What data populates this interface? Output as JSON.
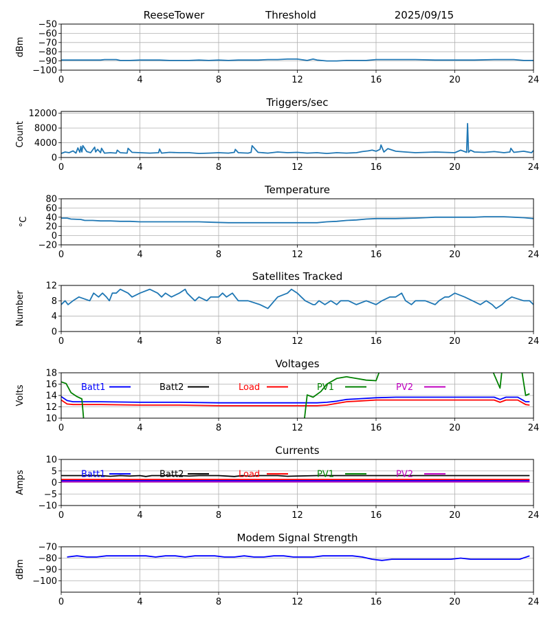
{
  "header": {
    "station": "ReeseTower",
    "mode": "Threshold",
    "date": "2025/09/15"
  },
  "chart_data": [
    {
      "id": "threshold",
      "type": "line",
      "title": "",
      "xlabel": "",
      "ylabel": "dBm",
      "xlim": [
        0,
        24
      ],
      "ylim": [
        -100,
        -50
      ],
      "xticks": [
        "0",
        "4",
        "8",
        "12",
        "16",
        "20",
        "24"
      ],
      "yticks": [
        "−50",
        "−60",
        "−70",
        "−80",
        "−90",
        "−100"
      ],
      "ytick_values": [
        -50,
        -60,
        -70,
        -80,
        -90,
        -100
      ],
      "grid": true,
      "series": [
        {
          "name": "Threshold",
          "color": "#1f77b4",
          "x": [
            0,
            0.3,
            1,
            2,
            2.2,
            2.8,
            3,
            3.5,
            4,
            5,
            5.5,
            6.5,
            7,
            7.5,
            8,
            8.5,
            9,
            9.5,
            10,
            10.5,
            11,
            11.5,
            12,
            12.5,
            12.8,
            13,
            13.5,
            14,
            14.5,
            15,
            15.5,
            16,
            16.5,
            17,
            18,
            19,
            20,
            21,
            22,
            23,
            23.5,
            24
          ],
          "y": [
            -89,
            -89,
            -89,
            -89,
            -88.5,
            -88.5,
            -89.5,
            -89.5,
            -89,
            -89,
            -89.5,
            -89.5,
            -89,
            -89.5,
            -89,
            -89.5,
            -89,
            -89,
            -89,
            -88.5,
            -88.5,
            -88,
            -88,
            -89.5,
            -88,
            -89,
            -90,
            -90,
            -89.5,
            -89.5,
            -89.5,
            -88.5,
            -88.5,
            -88.5,
            -88.5,
            -89,
            -89,
            -89,
            -88.5,
            -88.5,
            -89.5,
            -89.5
          ]
        }
      ]
    },
    {
      "id": "triggers",
      "type": "line",
      "title": "Triggers/sec",
      "xlabel": "",
      "ylabel": "Count",
      "xlim": [
        0,
        24
      ],
      "ylim": [
        0,
        12500
      ],
      "xticks": [
        "0",
        "4",
        "8",
        "12",
        "16",
        "20",
        "24"
      ],
      "yticks": [
        "12000",
        "8000",
        "4000",
        "0"
      ],
      "ytick_values": [
        12000,
        8000,
        4000,
        0
      ],
      "grid": true,
      "series": [
        {
          "name": "Triggers",
          "color": "#1f77b4",
          "x": [
            0,
            0.2,
            0.4,
            0.6,
            0.75,
            0.85,
            0.95,
            1.0,
            1.05,
            1.1,
            1.3,
            1.5,
            1.7,
            1.75,
            1.85,
            2.0,
            2.05,
            2.2,
            2.5,
            2.8,
            2.85,
            3.0,
            3.35,
            3.4,
            3.6,
            4.0,
            4.5,
            4.95,
            5.0,
            5.1,
            5.5,
            6.0,
            6.5,
            7.0,
            7.5,
            8.0,
            8.5,
            8.8,
            8.85,
            9.0,
            9.5,
            9.65,
            9.7,
            10.0,
            10.5,
            11.0,
            11.5,
            12.0,
            12.5,
            13.0,
            13.5,
            14.0,
            14.5,
            15.0,
            15.3,
            15.6,
            15.8,
            16.0,
            16.2,
            16.25,
            16.4,
            16.6,
            17.0,
            17.5,
            18.0,
            18.5,
            19.0,
            19.5,
            20.0,
            20.3,
            20.6,
            20.65,
            20.7,
            20.8,
            21.0,
            21.5,
            22.0,
            22.5,
            22.8,
            22.85,
            23.0,
            23.5,
            23.9,
            24.0
          ],
          "y": [
            1100,
            1500,
            1300,
            1800,
            1200,
            2600,
            1400,
            3000,
            1500,
            3200,
            1600,
            1300,
            2800,
            1500,
            2200,
            1300,
            2500,
            1200,
            1300,
            1200,
            2000,
            1300,
            1200,
            2500,
            1400,
            1300,
            1200,
            1300,
            2300,
            1200,
            1400,
            1300,
            1300,
            1100,
            1200,
            1300,
            1200,
            1400,
            2200,
            1300,
            1200,
            1400,
            3200,
            1400,
            1200,
            1500,
            1300,
            1400,
            1200,
            1300,
            1100,
            1300,
            1200,
            1300,
            1600,
            1800,
            2000,
            1700,
            2200,
            3400,
            1500,
            2400,
            1700,
            1500,
            1300,
            1400,
            1500,
            1400,
            1300,
            2000,
            1400,
            9200,
            1400,
            2000,
            1500,
            1400,
            1600,
            1300,
            1500,
            2500,
            1400,
            1700,
            1300,
            1900
          ]
        }
      ]
    },
    {
      "id": "temperature",
      "type": "line",
      "title": "Temperature",
      "xlabel": "",
      "ylabel": "°C",
      "xlim": [
        0,
        24
      ],
      "ylim": [
        -20,
        80
      ],
      "xticks": [
        "0",
        "4",
        "8",
        "12",
        "16",
        "20",
        "24"
      ],
      "yticks": [
        "80",
        "60",
        "40",
        "20",
        "0",
        "−20"
      ],
      "ytick_values": [
        80,
        60,
        40,
        20,
        0,
        -20
      ],
      "grid": true,
      "series": [
        {
          "name": "Temperature",
          "color": "#1f77b4",
          "x": [
            0,
            0.3,
            0.5,
            1.0,
            1.2,
            1.6,
            2.0,
            2.5,
            3.0,
            3.5,
            4.0,
            5.0,
            6.0,
            7.0,
            7.7,
            8.5,
            9.0,
            10.0,
            11.0,
            12.0,
            12.5,
            13.0,
            13.5,
            14.0,
            14.5,
            15.0,
            15.5,
            16.0,
            17.0,
            18.0,
            18.5,
            19.0,
            20.0,
            21.0,
            21.5,
            22.0,
            22.5,
            23.0,
            23.5,
            24.0
          ],
          "y": [
            38,
            38,
            36,
            35,
            33,
            33,
            32,
            32,
            31,
            31,
            30,
            30,
            30,
            30,
            29,
            28,
            28,
            28,
            28,
            28,
            28,
            28,
            30,
            31,
            33,
            34,
            36,
            37,
            37,
            38,
            39,
            40,
            40,
            40,
            41,
            41,
            41,
            40,
            39,
            37
          ]
        }
      ]
    },
    {
      "id": "satellites",
      "type": "line",
      "title": "Satellites Tracked",
      "xlabel": "",
      "ylabel": "Number",
      "xlim": [
        0,
        24
      ],
      "ylim": [
        0,
        12
      ],
      "xticks": [
        "0",
        "4",
        "8",
        "12",
        "16",
        "20",
        "24"
      ],
      "yticks": [
        "12",
        "8",
        "4",
        "0"
      ],
      "ytick_values": [
        12,
        8,
        4,
        0
      ],
      "grid": true,
      "series": [
        {
          "name": "Satellites",
          "color": "#1f77b4",
          "x": [
            0,
            0.2,
            0.35,
            0.6,
            0.9,
            1.45,
            1.65,
            1.9,
            2.1,
            2.3,
            2.45,
            2.6,
            2.8,
            3.0,
            3.4,
            3.6,
            4.0,
            4.5,
            4.9,
            5.1,
            5.3,
            5.6,
            6.0,
            6.3,
            6.4,
            6.6,
            6.8,
            7.0,
            7.4,
            7.6,
            8.0,
            8.2,
            8.4,
            8.7,
            8.85,
            9.0,
            9.5,
            10.1,
            10.5,
            11.0,
            11.5,
            11.7,
            12.0,
            12.2,
            12.4,
            12.8,
            12.9,
            13.1,
            13.4,
            13.7,
            14.0,
            14.2,
            14.6,
            15.0,
            15.5,
            16.0,
            16.3,
            16.7,
            17.0,
            17.3,
            17.5,
            17.8,
            18.0,
            18.5,
            19.0,
            19.2,
            19.5,
            19.7,
            20.0,
            20.5,
            20.9,
            21.3,
            21.6,
            21.9,
            22.1,
            22.4,
            22.6,
            22.9,
            23.5,
            23.8,
            24.0
          ],
          "y": [
            7,
            8,
            7,
            8,
            9,
            8,
            10,
            9,
            10,
            9,
            8,
            10,
            10,
            11,
            10,
            9,
            10,
            11,
            10,
            9,
            10,
            9,
            10,
            11,
            10,
            9,
            8,
            9,
            8,
            9,
            9,
            10,
            9,
            10,
            9,
            8,
            8,
            7,
            6,
            9,
            10,
            11,
            10,
            9,
            8,
            7,
            7,
            8,
            7,
            8,
            7,
            8,
            8,
            7,
            8,
            7,
            8,
            9,
            9,
            10,
            8,
            7,
            8,
            8,
            7,
            8,
            9,
            9,
            10,
            9,
            8,
            7,
            8,
            7,
            6,
            7,
            8,
            9,
            8,
            8,
            7
          ]
        }
      ]
    },
    {
      "id": "voltages",
      "type": "line",
      "title": "Voltages",
      "xlabel": "",
      "ylabel": "Volts",
      "xlim": [
        0,
        24
      ],
      "ylim": [
        10,
        18
      ],
      "xticks": [
        "0",
        "4",
        "8",
        "12",
        "16",
        "20",
        "24"
      ],
      "yticks": [
        "18",
        "16",
        "14",
        "12",
        "10"
      ],
      "ytick_values": [
        18,
        16,
        14,
        12,
        10
      ],
      "grid": true,
      "legend": "top",
      "series": [
        {
          "name": "Batt1",
          "color": "#0000ff",
          "x": [
            0,
            0.3,
            0.6,
            1,
            2,
            4,
            6,
            8,
            10,
            12,
            13,
            13.5,
            14,
            14.5,
            15,
            16,
            17,
            18,
            20,
            22,
            22.3,
            22.6,
            23.2,
            23.6,
            23.8
          ],
          "y": [
            13.8,
            13.1,
            12.9,
            12.9,
            12.9,
            12.8,
            12.8,
            12.7,
            12.7,
            12.7,
            12.7,
            12.8,
            13.0,
            13.3,
            13.4,
            13.6,
            13.7,
            13.7,
            13.7,
            13.7,
            13.3,
            13.7,
            13.7,
            12.9,
            12.9
          ]
        },
        {
          "name": "Batt2",
          "color": "#000000",
          "x": [],
          "y": []
        },
        {
          "name": "Load",
          "color": "#ff0000",
          "x": [
            0,
            0.3,
            0.6,
            1,
            2,
            4,
            6,
            8,
            10,
            12,
            13,
            13.5,
            14,
            14.5,
            15,
            16,
            17,
            18,
            20,
            22,
            22.3,
            22.6,
            23.2,
            23.6,
            23.8
          ],
          "y": [
            13.2,
            12.5,
            12.4,
            12.4,
            12.4,
            12.3,
            12.3,
            12.2,
            12.2,
            12.2,
            12.2,
            12.3,
            12.6,
            12.9,
            13.0,
            13.2,
            13.2,
            13.2,
            13.2,
            13.2,
            12.8,
            13.2,
            13.2,
            12.4,
            12.3
          ]
        },
        {
          "name": "PV1",
          "color": "#008000",
          "x": [
            0,
            0.25,
            0.5,
            0.8,
            1.05,
            1.15,
            12.35,
            12.5,
            12.8,
            13.2,
            13.5,
            14,
            14.5,
            15,
            15.5,
            16,
            16.2,
            21.9,
            22.3,
            22.4,
            23.4,
            23.6,
            23.8
          ],
          "y": [
            16.4,
            16.1,
            14.5,
            13.8,
            13.4,
            9.5,
            9.5,
            14.1,
            13.7,
            14.7,
            16.0,
            17.0,
            17.3,
            17.0,
            16.7,
            16.6,
            18.5,
            18.5,
            15.3,
            18.5,
            18.5,
            14.0,
            14.3
          ]
        },
        {
          "name": "PV2",
          "color": "#bf00bf",
          "x": [],
          "y": []
        }
      ]
    },
    {
      "id": "currents",
      "type": "line",
      "title": "Currents",
      "xlabel": "",
      "ylabel": "Amps",
      "xlim": [
        0,
        24
      ],
      "ylim": [
        -10,
        10
      ],
      "xticks": [
        "0",
        "4",
        "8",
        "12",
        "16",
        "20",
        "24"
      ],
      "yticks": [
        "10",
        "5",
        "0",
        "−5",
        "−10"
      ],
      "ytick_values": [
        10,
        5,
        0,
        -5,
        -10
      ],
      "grid": true,
      "legend": "top",
      "series": [
        {
          "name": "Batt1",
          "color": "#0000ff",
          "x": [
            0,
            23.8
          ],
          "y": [
            0.8,
            0.8
          ]
        },
        {
          "name": "Batt2",
          "color": "#000000",
          "x": [
            0,
            2,
            2.5,
            3,
            3.5,
            4,
            4.3,
            4.6,
            5,
            6,
            6.5,
            7,
            8,
            8.8,
            9.2,
            9.6,
            10,
            11,
            11.5,
            12,
            13,
            16,
            20,
            23.8
          ],
          "y": [
            3,
            3,
            2.7,
            3,
            2.8,
            3,
            2.6,
            3,
            3,
            3,
            2.8,
            3,
            3,
            2.6,
            3,
            2.7,
            3,
            3,
            2.7,
            2.8,
            3,
            3,
            3,
            3
          ]
        },
        {
          "name": "Load",
          "color": "#ff0000",
          "x": [
            0,
            23.8
          ],
          "y": [
            1.3,
            1.3
          ]
        },
        {
          "name": "PV1",
          "color": "#008000",
          "x": [],
          "y": []
        },
        {
          "name": "PV2",
          "color": "#bf00bf",
          "x": [
            0,
            23.8
          ],
          "y": [
            0.3,
            0.3
          ]
        }
      ]
    },
    {
      "id": "modem",
      "type": "line",
      "title": "Modem Signal Strength",
      "xlabel": "",
      "ylabel": "dBm",
      "xlim": [
        0,
        24
      ],
      "ylim": [
        -110,
        -70
      ],
      "xticks": [
        "0",
        "4",
        "8",
        "12",
        "16",
        "20",
        "24"
      ],
      "yticks": [
        "−70",
        "−80",
        "−90",
        "−100"
      ],
      "ytick_values": [
        -70,
        -80,
        -90,
        -100
      ],
      "grid": true,
      "series": [
        {
          "name": "Modem",
          "color": "#0000ff",
          "x": [
            0.3,
            0.8,
            1.3,
            1.8,
            2.3,
            2.8,
            3.3,
            3.8,
            4.3,
            4.8,
            5.3,
            5.8,
            6.3,
            6.8,
            7.3,
            7.8,
            8.3,
            8.8,
            9.3,
            9.8,
            10.3,
            10.8,
            11.3,
            11.8,
            12.3,
            12.8,
            13.3,
            13.8,
            14.3,
            14.8,
            15.3,
            15.8,
            16.3,
            16.8,
            17.3,
            17.8,
            18.3,
            18.8,
            19.3,
            19.8,
            20.3,
            20.8,
            21.3,
            21.8,
            22.3,
            22.8,
            23.3,
            23.8
          ],
          "y": [
            -79,
            -78,
            -79,
            -79,
            -78,
            -78,
            -78,
            -78,
            -78,
            -79,
            -78,
            -78,
            -79,
            -78,
            -78,
            -78,
            -79,
            -79,
            -78,
            -79,
            -79,
            -78,
            -78,
            -79,
            -79,
            -79,
            -78,
            -78,
            -78,
            -78,
            -79,
            -81,
            -82,
            -81,
            -81,
            -81,
            -81,
            -81,
            -81,
            -81,
            -80,
            -81,
            -81,
            -81,
            -81,
            -81,
            -81,
            -78
          ]
        }
      ]
    }
  ]
}
